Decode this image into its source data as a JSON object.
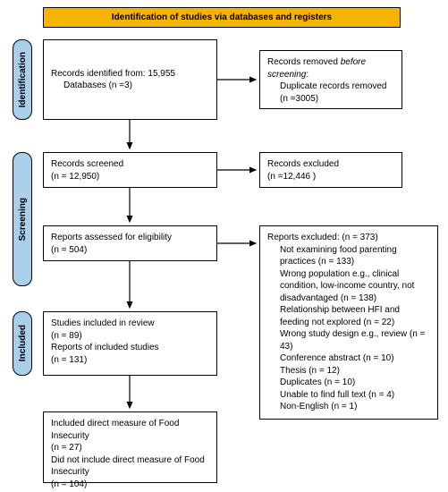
{
  "colors": {
    "header_bg": "#f5b400",
    "stage_bg": "#a9cfeb",
    "line": "#000000"
  },
  "header": {
    "title": "Identification of studies via databases and registers"
  },
  "stages": {
    "identification": "Identification",
    "screening": "Screening",
    "included": "Included"
  },
  "boxes": {
    "identified": {
      "line1": "Records identified from: 15,955",
      "line2": "Databases (n =3)"
    },
    "removed": {
      "line1": "Records removed ",
      "line1_em": "before screening",
      "line1_tail": ":",
      "line2": "Duplicate records removed (n =3005)"
    },
    "screened": {
      "line1": "Records screened",
      "line2": "(n = 12,950)"
    },
    "excluded_screen": {
      "line1": "Records excluded",
      "line2": "(n =12,446 )"
    },
    "assessed": {
      "line1": "Reports assessed for eligibility",
      "line2": "(n = 504)"
    },
    "excluded_reports": {
      "header": "Reports excluded: (n = 373)",
      "items": [
        "Not examining food parenting practices (n = 133)",
        "Wrong population e.g., clinical condition, low-income country, not disadvantaged (n = 138)",
        "Relationship between HFI and feeding not explored (n = 22)",
        "Wrong study design e.g., review (n = 43)",
        "Conference abstract (n = 10)",
        "Thesis (n  = 12)",
        "Duplicates (n = 10)",
        "Unable to find full text (n = 4)",
        "Non-English (n = 1)"
      ]
    },
    "included": {
      "line1": "Studies included in review",
      "line2": "(n = 89)",
      "line3": "Reports of included studies",
      "line4": "(n = 131)"
    },
    "final": {
      "line1": "Included direct measure of Food Insecurity",
      "line2": "(n = 27)",
      "line3": "Did not include direct measure of Food Insecurity",
      "line4": "(n = 104)"
    }
  }
}
